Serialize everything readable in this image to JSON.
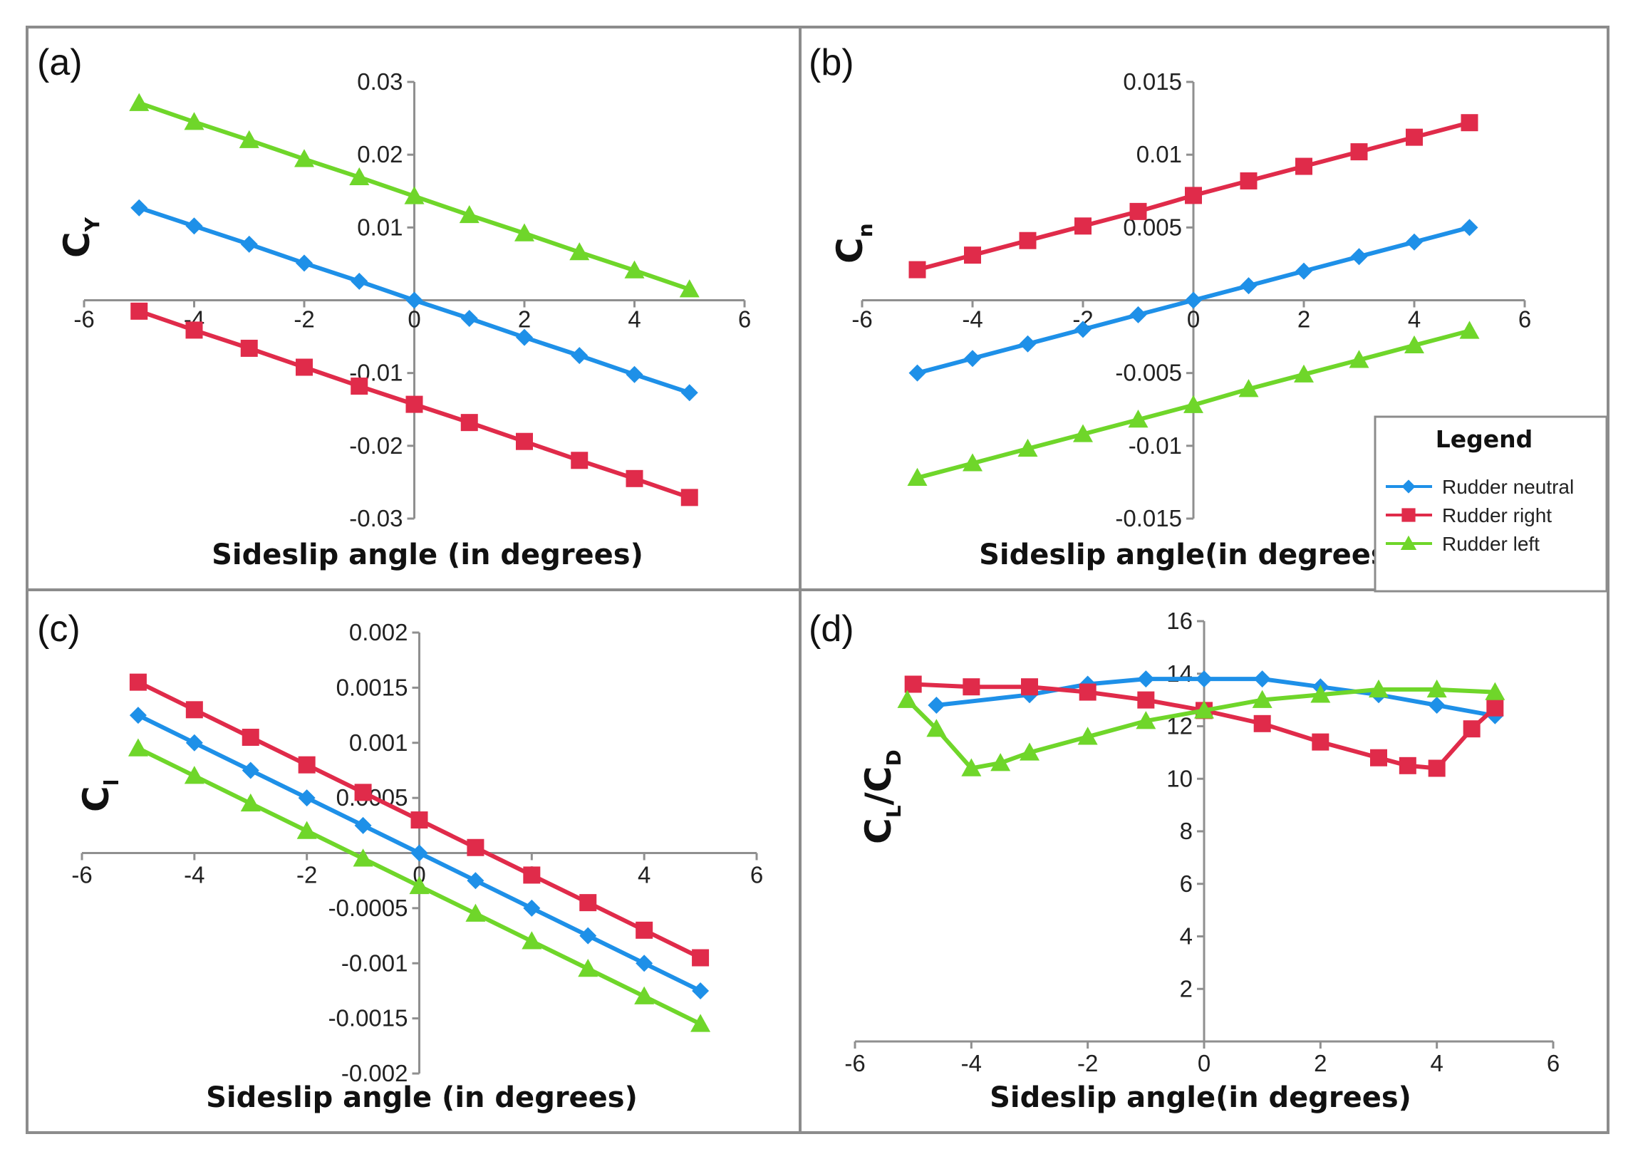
{
  "figure": {
    "colors": {
      "neutral": "#1e90e8",
      "right": "#e02b4a",
      "left": "#6fd62a"
    },
    "legend": {
      "title": "Legend",
      "entries": [
        {
          "key": "neutral",
          "label": "Rudder neutral",
          "marker": "diamond"
        },
        {
          "key": "right",
          "label": "Rudder right",
          "marker": "square"
        },
        {
          "key": "left",
          "label": "Rudder left",
          "marker": "triangle"
        }
      ]
    }
  },
  "chart_data": [
    {
      "id": "a",
      "type": "line",
      "panel_label": "(a)",
      "title": "",
      "xlabel": "Sideslip angle (in degrees)",
      "ylabel_main": "C",
      "ylabel_sub": "Y",
      "xlim": [
        -6,
        6
      ],
      "ylim": [
        -0.03,
        0.03
      ],
      "xticks": [
        -6,
        -4,
        -2,
        0,
        2,
        4,
        6
      ],
      "xtick_labels": [
        "-6",
        "-4",
        "-2",
        "0",
        "2",
        "4",
        "6"
      ],
      "yticks": [
        -0.03,
        -0.02,
        -0.01,
        0.01,
        0.02,
        0.03
      ],
      "ytick_labels": [
        "-0.03",
        "-0.02",
        "-0.01",
        "0.01",
        "0.02",
        "0.03"
      ],
      "series": [
        {
          "name": "Rudder neutral",
          "key": "neutral",
          "marker": "diamond",
          "x": [
            -5,
            -4,
            -3,
            -2,
            -1,
            0,
            1,
            2,
            3,
            4,
            5
          ],
          "y": [
            0.0127,
            0.0102,
            0.0077,
            0.0051,
            0.0026,
            0.0,
            -0.0025,
            -0.0051,
            -0.0076,
            -0.0102,
            -0.0127
          ]
        },
        {
          "name": "Rudder right",
          "key": "right",
          "marker": "square",
          "x": [
            -5,
            -4,
            -3,
            -2,
            -1,
            0,
            1,
            2,
            3,
            4,
            5
          ],
          "y": [
            -0.0015,
            -0.0041,
            -0.0066,
            -0.0092,
            -0.0118,
            -0.0143,
            -0.0168,
            -0.0194,
            -0.022,
            -0.0245,
            -0.0271
          ]
        },
        {
          "name": "Rudder left",
          "key": "left",
          "marker": "triangle",
          "x": [
            -5,
            -4,
            -3,
            -2,
            -1,
            0,
            1,
            2,
            3,
            4,
            5
          ],
          "y": [
            0.0271,
            0.0245,
            0.022,
            0.0194,
            0.0169,
            0.0143,
            0.0117,
            0.0092,
            0.0066,
            0.0041,
            0.0015
          ]
        }
      ]
    },
    {
      "id": "b",
      "type": "line",
      "panel_label": "(b)",
      "title": "",
      "xlabel": "Sideslip angle(in degrees)",
      "ylabel_main": "C",
      "ylabel_sub": "n",
      "xlim": [
        -6,
        6
      ],
      "ylim": [
        -0.015,
        0.015
      ],
      "xticks": [
        -6,
        -4,
        -2,
        0,
        2,
        4,
        6
      ],
      "xtick_labels": [
        "-6",
        "-4",
        "-2",
        "0",
        "2",
        "4",
        "6"
      ],
      "yticks": [
        -0.015,
        -0.01,
        -0.005,
        0.005,
        0.01,
        0.015
      ],
      "ytick_labels": [
        "-0.015",
        "-0.01",
        "-0.005",
        "0.005",
        "0.01",
        "0.015"
      ],
      "series": [
        {
          "name": "Rudder neutral",
          "key": "neutral",
          "marker": "diamond",
          "x": [
            -5,
            -4,
            -3,
            -2,
            -1,
            0,
            1,
            2,
            3,
            4,
            5
          ],
          "y": [
            -0.005,
            -0.004,
            -0.003,
            -0.002,
            -0.001,
            0.0,
            0.001,
            0.002,
            0.003,
            0.004,
            0.005
          ]
        },
        {
          "name": "Rudder right",
          "key": "right",
          "marker": "square",
          "x": [
            -5,
            -4,
            -3,
            -2,
            -1,
            0,
            1,
            2,
            3,
            4,
            5
          ],
          "y": [
            0.0021,
            0.0031,
            0.0041,
            0.0051,
            0.0061,
            0.0072,
            0.0082,
            0.0092,
            0.0102,
            0.0112,
            0.0122
          ]
        },
        {
          "name": "Rudder left",
          "key": "left",
          "marker": "triangle",
          "x": [
            -5,
            -4,
            -3,
            -2,
            -1,
            0,
            1,
            2,
            3,
            4,
            5
          ],
          "y": [
            -0.0122,
            -0.0112,
            -0.0102,
            -0.0092,
            -0.0082,
            -0.0072,
            -0.0061,
            -0.0051,
            -0.0041,
            -0.0031,
            -0.0021
          ]
        }
      ]
    },
    {
      "id": "c",
      "type": "line",
      "panel_label": "(c)",
      "title": "",
      "xlabel": "Sideslip angle (in degrees)",
      "ylabel_main": "C",
      "ylabel_sub": "l",
      "xlim": [
        -6,
        6
      ],
      "ylim": [
        -0.002,
        0.002
      ],
      "xticks": [
        -6,
        -4,
        -2,
        0,
        2,
        4,
        6
      ],
      "xtick_labels": [
        "-6",
        "-4",
        "-2",
        "0",
        "2",
        "4",
        "6"
      ],
      "yticks": [
        -0.002,
        -0.0015,
        -0.001,
        -0.0005,
        0.0005,
        0.001,
        0.0015,
        0.002
      ],
      "ytick_labels": [
        "-0.002",
        "-0.0015",
        "-0.001",
        "-0.0005",
        "0.0005",
        "0.001",
        "0.0015",
        "0.002"
      ],
      "series": [
        {
          "name": "Rudder neutral",
          "key": "neutral",
          "marker": "diamond",
          "x": [
            -5,
            -4,
            -3,
            -2,
            -1,
            0,
            1,
            2,
            3,
            4,
            5
          ],
          "y": [
            0.00125,
            0.001,
            0.00075,
            0.0005,
            0.00025,
            0.0,
            -0.00025,
            -0.0005,
            -0.00075,
            -0.001,
            -0.00125
          ]
        },
        {
          "name": "Rudder right",
          "key": "right",
          "marker": "square",
          "x": [
            -5,
            -4,
            -3,
            -2,
            -1,
            0,
            1,
            2,
            3,
            4,
            5
          ],
          "y": [
            0.00155,
            0.0013,
            0.00105,
            0.0008,
            0.00055,
            0.0003,
            5e-05,
            -0.0002,
            -0.00045,
            -0.0007,
            -0.00095
          ]
        },
        {
          "name": "Rudder left",
          "key": "left",
          "marker": "triangle",
          "x": [
            -5,
            -4,
            -3,
            -2,
            -1,
            0,
            1,
            2,
            3,
            4,
            5
          ],
          "y": [
            0.00095,
            0.0007,
            0.00045,
            0.0002,
            -5e-05,
            -0.0003,
            -0.00055,
            -0.0008,
            -0.00105,
            -0.0013,
            -0.00155
          ]
        }
      ]
    },
    {
      "id": "d",
      "type": "line",
      "panel_label": "(d)",
      "title": "",
      "xlabel": "Sideslip angle(in degrees)",
      "ylabel_main": "C",
      "ylabel_sub": "L",
      "ylabel_slash": "/C",
      "ylabel_sub2": "D",
      "xlim": [
        -6,
        6
      ],
      "ylim": [
        0,
        16
      ],
      "xticks": [
        -6,
        -4,
        -2,
        0,
        2,
        4,
        6
      ],
      "xtick_labels": [
        "-6",
        "-4",
        "-2",
        "0",
        "2",
        "4",
        "6"
      ],
      "yticks": [
        2,
        4,
        6,
        8,
        10,
        12,
        14,
        16
      ],
      "ytick_labels": [
        "2",
        "4",
        "6",
        "8",
        "10",
        "12",
        "14",
        "16"
      ],
      "series": [
        {
          "name": "Rudder neutral",
          "key": "neutral",
          "marker": "diamond",
          "x": [
            -4.6,
            -3,
            -2,
            -1,
            0,
            1,
            2,
            3,
            4,
            5
          ],
          "y": [
            12.8,
            13.2,
            13.6,
            13.8,
            13.8,
            13.8,
            13.5,
            13.2,
            12.8,
            12.4
          ]
        },
        {
          "name": "Rudder right",
          "key": "right",
          "marker": "square",
          "x": [
            -5,
            -4,
            -3,
            -2,
            -1,
            0,
            1,
            2,
            3,
            3.5,
            4,
            4.6,
            5
          ],
          "y": [
            13.6,
            13.5,
            13.5,
            13.3,
            13.0,
            12.6,
            12.1,
            11.4,
            10.8,
            10.5,
            10.4,
            11.9,
            12.7
          ]
        },
        {
          "name": "Rudder left",
          "key": "left",
          "marker": "triangle",
          "x": [
            -5.1,
            -4.6,
            -4,
            -3.5,
            -3,
            -2,
            -1,
            0,
            1,
            2,
            3,
            4,
            5
          ],
          "y": [
            13.0,
            11.9,
            10.4,
            10.6,
            11.0,
            11.6,
            12.2,
            12.6,
            13.0,
            13.2,
            13.4,
            13.4,
            13.3
          ]
        }
      ]
    }
  ]
}
